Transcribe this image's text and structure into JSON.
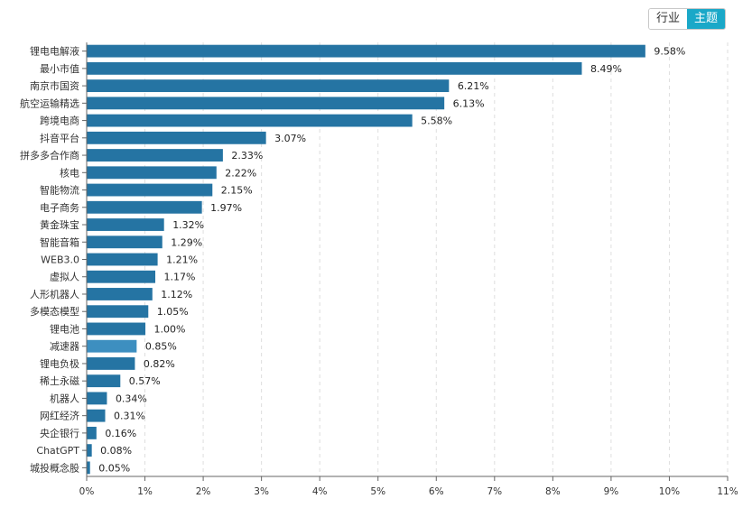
{
  "toggle": {
    "items": [
      {
        "label": "行业",
        "active": false
      },
      {
        "label": "主题",
        "active": true
      }
    ]
  },
  "colors": {
    "bar": "#2574a3",
    "bar_highlight": "#3d8fc0",
    "grid": "#dedede",
    "axis": "#666666",
    "toggle_active": "#1aa8c8"
  },
  "chart_data": {
    "type": "bar",
    "orientation": "horizontal",
    "categories": [
      "锂电电解液",
      "最小市值",
      "南京市国资",
      "航空运输精选",
      "跨境电商",
      "抖音平台",
      "拼多多合作商",
      "核电",
      "智能物流",
      "电子商务",
      "黄金珠宝",
      "智能音箱",
      "WEB3.0",
      "虚拟人",
      "人形机器人",
      "多模态模型",
      "锂电池",
      "减速器",
      "锂电负极",
      "稀土永磁",
      "机器人",
      "网红经济",
      "央企银行",
      "ChatGPT",
      "城投概念股"
    ],
    "values": [
      9.58,
      8.49,
      6.21,
      6.13,
      5.58,
      3.07,
      2.33,
      2.22,
      2.15,
      1.97,
      1.32,
      1.29,
      1.21,
      1.17,
      1.12,
      1.05,
      1.0,
      0.85,
      0.82,
      0.57,
      0.34,
      0.31,
      0.16,
      0.08,
      0.05
    ],
    "value_labels": [
      "9.58%",
      "8.49%",
      "6.21%",
      "6.13%",
      "5.58%",
      "3.07%",
      "2.33%",
      "2.22%",
      "2.15%",
      "1.97%",
      "1.32%",
      "1.29%",
      "1.21%",
      "1.17%",
      "1.12%",
      "1.05%",
      "1.00%",
      "0.85%",
      "0.82%",
      "0.57%",
      "0.34%",
      "0.31%",
      "0.16%",
      "0.08%",
      "0.05%"
    ],
    "highlight_index": 17,
    "xlim": [
      0,
      11
    ],
    "xticks": [
      "0%",
      "1%",
      "2%",
      "3%",
      "4%",
      "5%",
      "6%",
      "7%",
      "8%",
      "9%",
      "10%",
      "11%"
    ],
    "grid": true
  }
}
